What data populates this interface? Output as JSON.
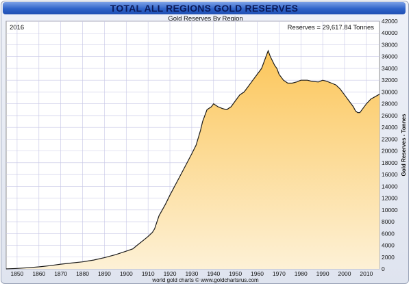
{
  "chart_data": {
    "type": "area",
    "title": "TOTAL ALL REGIONS GOLD RESERVES",
    "subtitle": "Gold Reserves By Region",
    "year_label": "2016",
    "annotation": "Reserves = 29,617.84 Tonnes",
    "ylabel": "Gold Reserves - Tonnes",
    "footer": "world gold charts © www.goldchartsrus.com",
    "xlim": [
      1845,
      2016
    ],
    "ylim": [
      0,
      42000
    ],
    "x_ticks": [
      "1850",
      "1860",
      "1870",
      "1880",
      "1890",
      "1900",
      "1910",
      "1920",
      "1930",
      "1940",
      "1950",
      "1960",
      "1970",
      "1980",
      "1990",
      "2000",
      "2010"
    ],
    "y_ticks": [
      "0",
      "2000",
      "4000",
      "6000",
      "8000",
      "10000",
      "12000",
      "14000",
      "16000",
      "18000",
      "20000",
      "22000",
      "24000",
      "26000",
      "28000",
      "30000",
      "32000",
      "34000",
      "36000",
      "38000",
      "40000",
      "42000"
    ],
    "x": [
      1845,
      1850,
      1855,
      1860,
      1865,
      1870,
      1875,
      1880,
      1885,
      1890,
      1895,
      1900,
      1903,
      1905,
      1908,
      1910,
      1912,
      1913,
      1915,
      1918,
      1920,
      1925,
      1930,
      1932,
      1934,
      1935,
      1937,
      1939,
      1940,
      1942,
      1944,
      1946,
      1948,
      1950,
      1952,
      1954,
      1956,
      1958,
      1960,
      1962,
      1964,
      1965,
      1966,
      1968,
      1969,
      1970,
      1972,
      1974,
      1976,
      1978,
      1980,
      1983,
      1985,
      1988,
      1990,
      1992,
      1994,
      1996,
      1998,
      2000,
      2002,
      2004,
      2005,
      2006,
      2007,
      2008,
      2010,
      2012,
      2014,
      2016
    ],
    "values": [
      0,
      80,
      200,
      350,
      550,
      800,
      1000,
      1200,
      1500,
      1900,
      2400,
      3000,
      3400,
      4000,
      4900,
      5500,
      6200,
      6800,
      9000,
      11000,
      12500,
      16000,
      19500,
      21000,
      23500,
      25000,
      27000,
      27500,
      28000,
      27500,
      27200,
      27000,
      27500,
      28500,
      29500,
      30000,
      31000,
      32000,
      33000,
      34000,
      36000,
      37000,
      36000,
      34500,
      34000,
      33000,
      32000,
      31500,
      31500,
      31700,
      32000,
      32000,
      31800,
      31700,
      32000,
      31800,
      31500,
      31200,
      30500,
      29500,
      28500,
      27500,
      26800,
      26500,
      26500,
      27000,
      28000,
      28800,
      29200,
      29617.84
    ],
    "colors": {
      "fill_top": "#fcc65a",
      "fill_bottom": "#fdf1d6",
      "line": "#1a1a1a",
      "grid": "#c7c7e6",
      "plot_bg": "#ffffff"
    }
  }
}
